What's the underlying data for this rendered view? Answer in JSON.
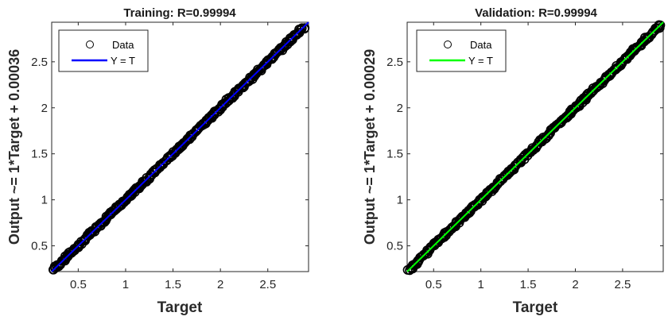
{
  "chart_data": [
    {
      "type": "scatter",
      "title": "Training: R=0.99994",
      "xlabel": "Target",
      "ylabel": "Output ~= 1*Target + 0.00036",
      "xlim": [
        0.22,
        2.93
      ],
      "ylim": [
        0.22,
        2.93
      ],
      "xticks": [
        "0.5",
        "1",
        "1.5",
        "2",
        "2.5"
      ],
      "yticks": [
        "0.5",
        "1",
        "1.5",
        "2",
        "2.5"
      ],
      "legend": {
        "position": "top-left",
        "entries": [
          "Data",
          "Y = T"
        ]
      },
      "grid": false,
      "fit_color": "#0000ff",
      "series": [
        {
          "name": "Data",
          "x_range": [
            0.24,
            2.88
          ],
          "y_range": [
            0.24,
            2.88
          ],
          "note_shape": "open circles along y = x"
        },
        {
          "name": "Y = T",
          "x": [
            0.22,
            2.93
          ],
          "y": [
            0.22,
            2.93
          ]
        }
      ]
    },
    {
      "type": "scatter",
      "title": "Validation: R=0.99994",
      "xlabel": "Target",
      "ylabel": "Output ~= 1*Target + 0.00029",
      "xlim": [
        0.22,
        2.93
      ],
      "ylim": [
        0.22,
        2.93
      ],
      "xticks": [
        "0.5",
        "1",
        "1.5",
        "2",
        "2.5"
      ],
      "yticks": [
        "0.5",
        "1",
        "1.5",
        "2",
        "2.5"
      ],
      "legend": {
        "position": "top-left",
        "entries": [
          "Data",
          "Y = T"
        ]
      },
      "grid": false,
      "fit_color": "#00ff00",
      "series": [
        {
          "name": "Data",
          "x_range": [
            0.24,
            2.9
          ],
          "y_range": [
            0.24,
            2.9
          ],
          "note_shape": "open circles along y = x"
        },
        {
          "name": "Y = T",
          "x": [
            0.22,
            2.93
          ],
          "y": [
            0.22,
            2.93
          ]
        }
      ]
    }
  ]
}
